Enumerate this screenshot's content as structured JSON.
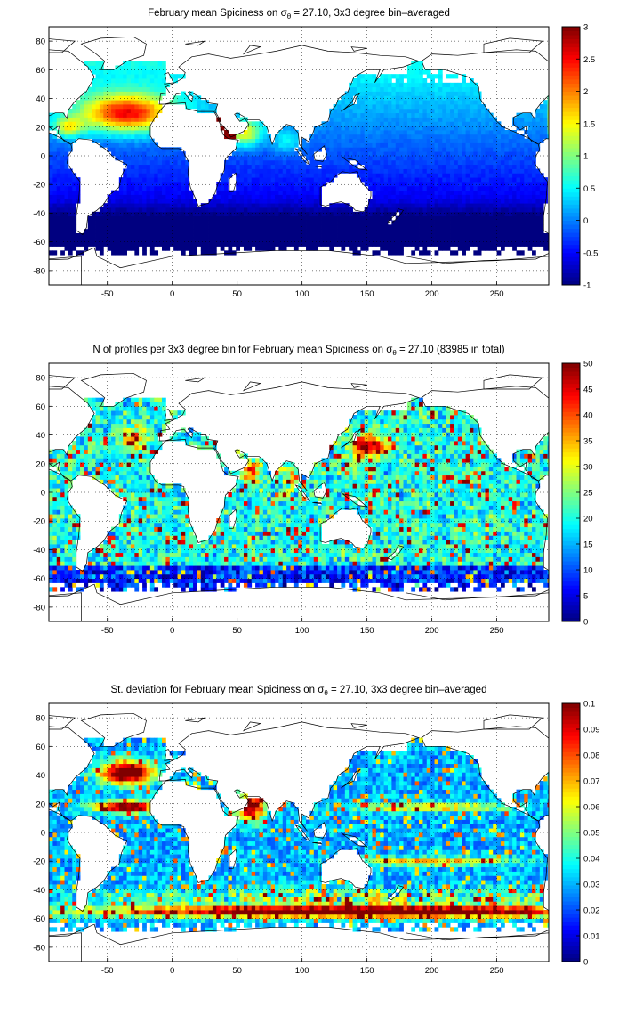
{
  "panels": [
    {
      "id": "mean",
      "title_pre": "February mean Spiciness on ",
      "title_sym": "σ",
      "title_sub": "θ",
      "title_post": " = 27.10, 3x3 degree bin–averaged",
      "xticks": [
        -50,
        0,
        50,
        100,
        150,
        200,
        250
      ],
      "yticks": [
        80,
        60,
        40,
        20,
        0,
        -20,
        -40,
        -60,
        -80
      ],
      "colorbar": {
        "min": -1,
        "max": 3,
        "ticks": [
          "3",
          "2.5",
          "2",
          "1.5",
          "1",
          "0.5",
          "0",
          "-0.5",
          "-1"
        ]
      },
      "field_description": "high values (orange/red) in North Atlantic subtropics and Arabian Sea/Red Sea; near 0 (cyan) in tropical Pacific/Indian; low (blue) in Southern Ocean"
    },
    {
      "id": "count",
      "title_pre": "N of profiles per 3x3 degree bin for February mean Spiciness on ",
      "title_sym": "σ",
      "title_sub": "θ",
      "title_post": " = 27.10 (83985 in total)",
      "xticks": [
        -50,
        0,
        50,
        100,
        150,
        200,
        250
      ],
      "yticks": [
        80,
        60,
        40,
        20,
        0,
        -20,
        -40,
        -60,
        -80
      ],
      "colorbar": {
        "min": 0,
        "max": 50,
        "ticks": [
          "50",
          "45",
          "40",
          "35",
          "30",
          "25",
          "20",
          "15",
          "10",
          "5",
          "0"
        ]
      },
      "field_description": "profile counts; high near Japan/Kuroshio and Arabian Sea, moderate elsewhere, low near Antarctica"
    },
    {
      "id": "std",
      "title_pre": "St. deviation for February mean Spiciness on ",
      "title_sym": "σ",
      "title_sub": "θ",
      "title_post": " = 27.10, 3x3 degree bin–averaged",
      "xticks": [
        -50,
        0,
        50,
        100,
        150,
        200,
        250
      ],
      "yticks": [
        80,
        60,
        40,
        20,
        0,
        -20,
        -40,
        -60,
        -80
      ],
      "colorbar": {
        "min": 0,
        "max": 0.1,
        "ticks": [
          "0.1",
          "0.09",
          "0.08",
          "0.07",
          "0.06",
          "0.05",
          "0.04",
          "0.03",
          "0.02",
          "0.01",
          "0"
        ]
      },
      "field_description": "high variability in North Atlantic and Antarctic Circumpolar band near 50-60S; low in central Pacific"
    }
  ],
  "axes": {
    "lon_range": [
      -95,
      290
    ],
    "lat_range": [
      -90,
      90
    ]
  }
}
